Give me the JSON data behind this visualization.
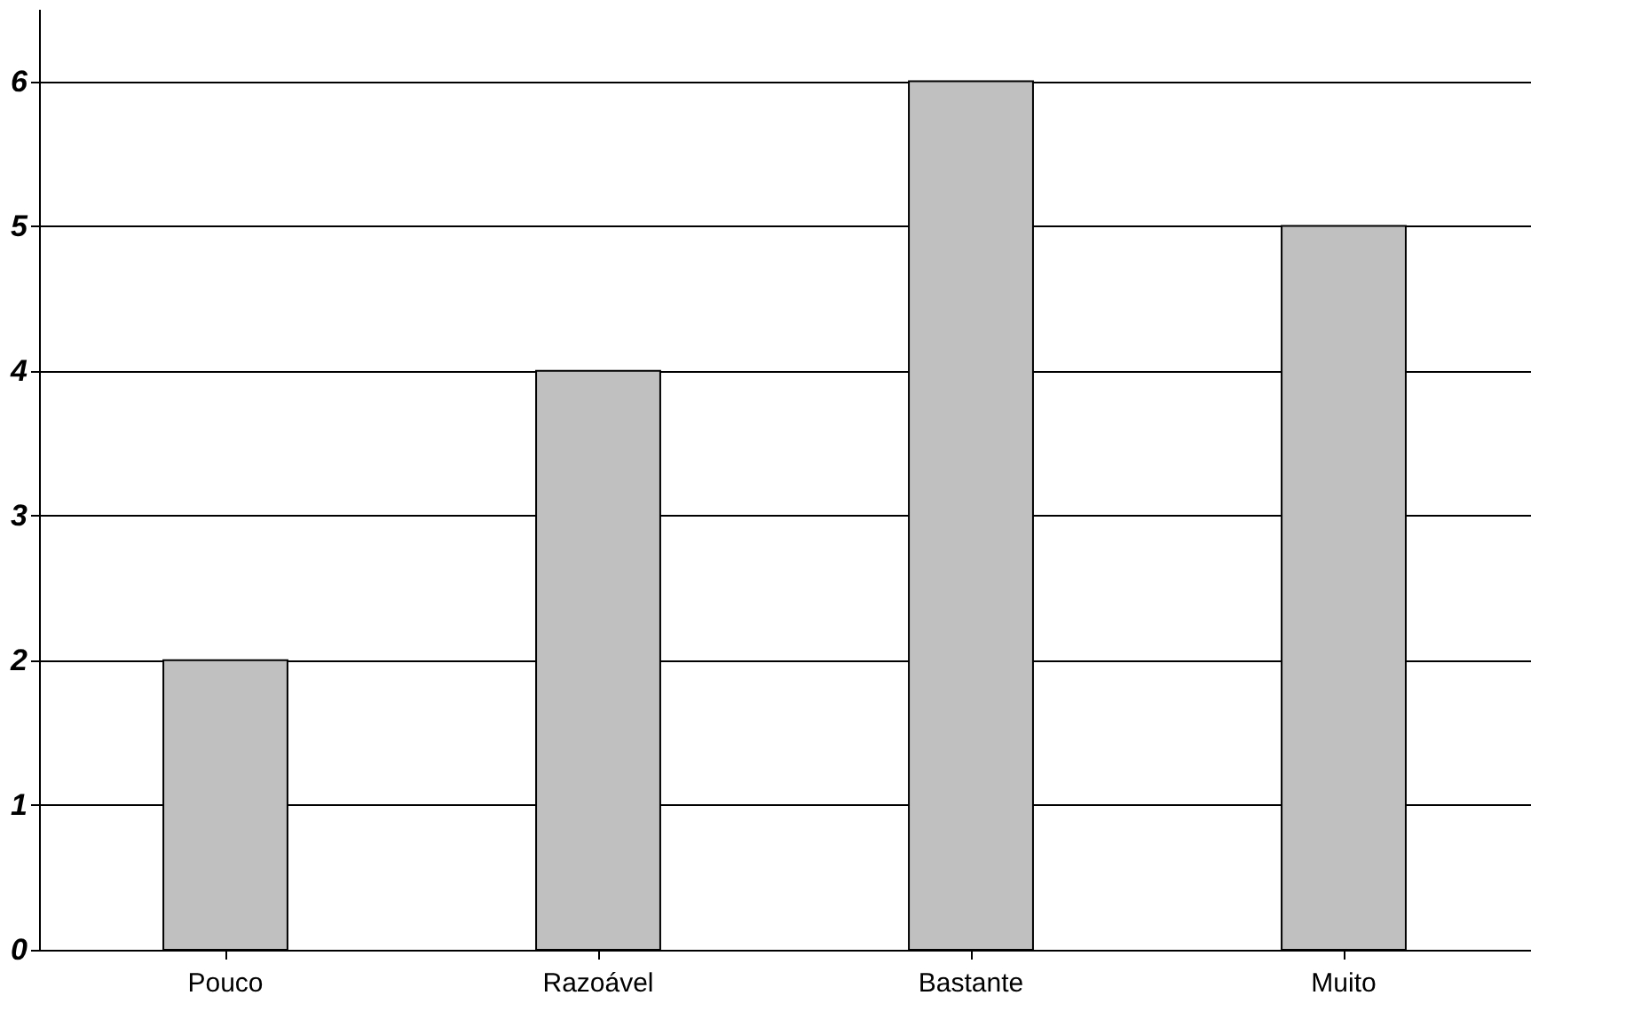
{
  "chart_data": {
    "type": "bar",
    "categories": [
      "Pouco",
      "Razoável",
      "Bastante",
      "Muito"
    ],
    "values": [
      2,
      4,
      6,
      5
    ],
    "color": "#c0c0c0",
    "ylim": [
      0,
      6.5
    ],
    "yticks": [
      0,
      1,
      2,
      3,
      4,
      5,
      6
    ],
    "grid": "y"
  }
}
